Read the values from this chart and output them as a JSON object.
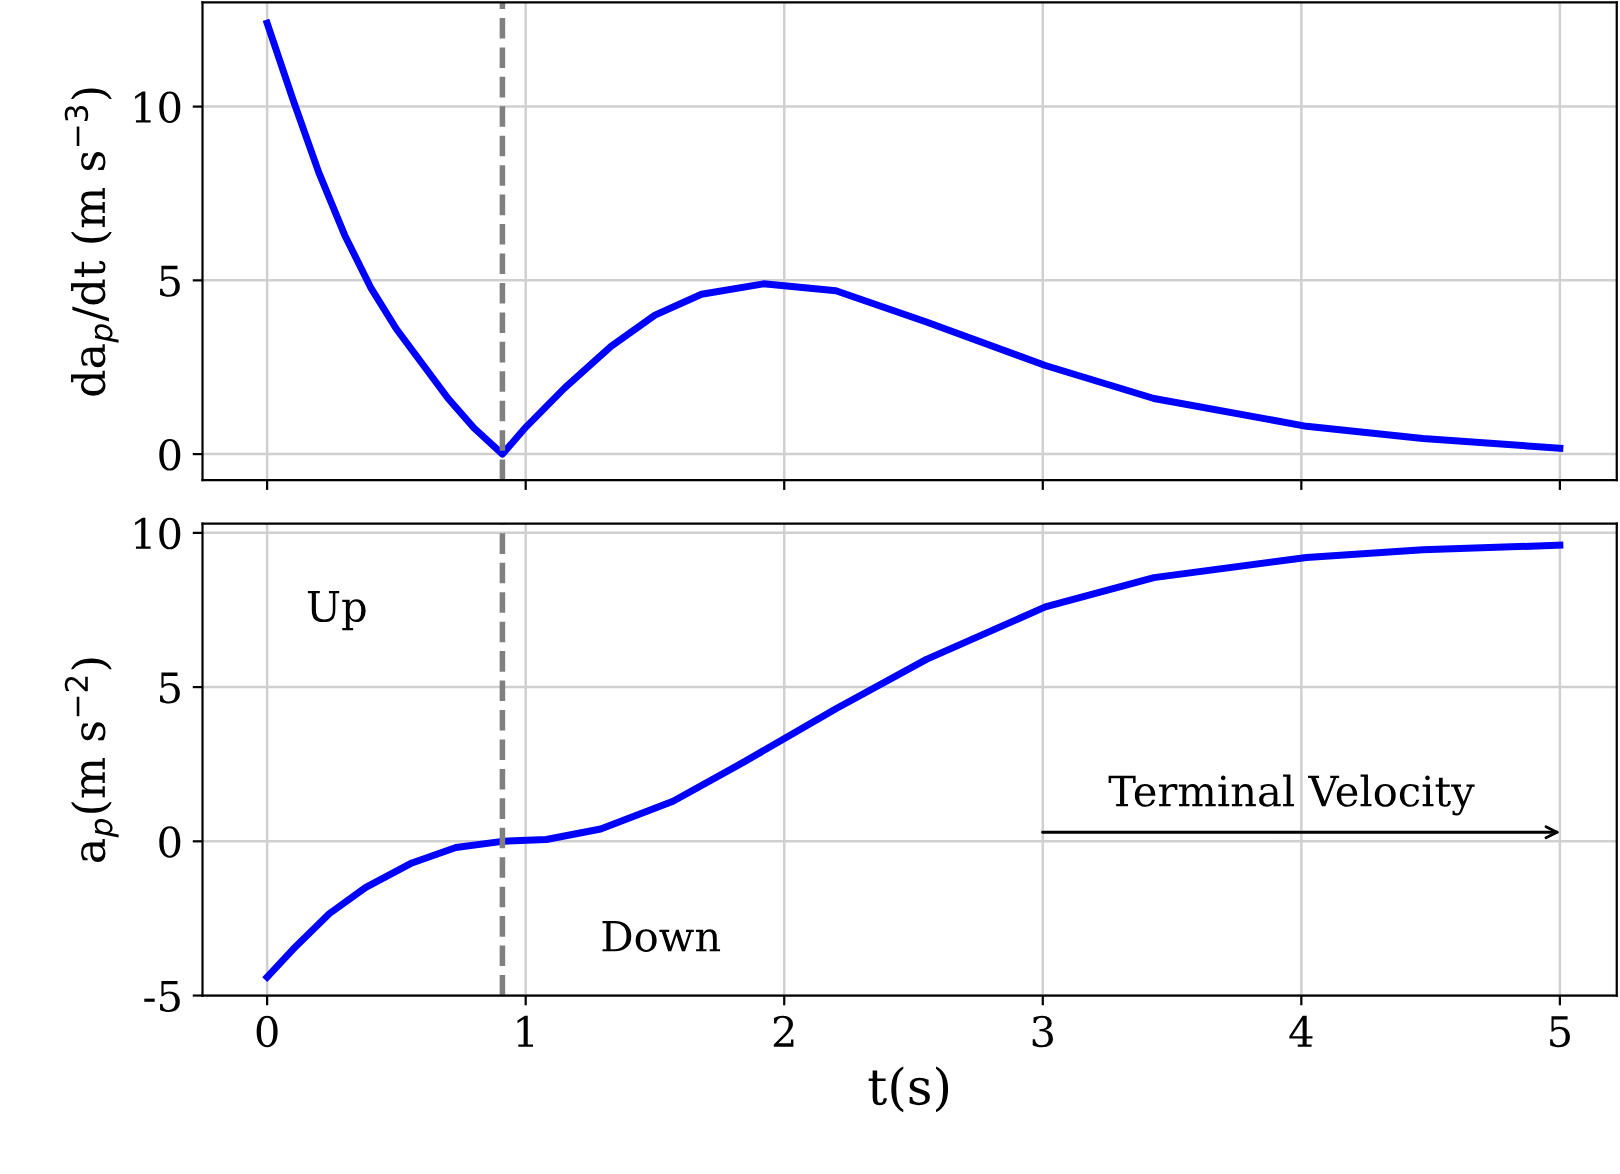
{
  "chart_data": [
    {
      "type": "line",
      "ylabel": "da$_{p}$/dt (m s$^{−3}$)",
      "x": [
        0,
        0.1,
        0.2,
        0.3,
        0.4,
        0.5,
        0.6,
        0.7,
        0.8,
        0.91,
        1.0,
        1.15,
        1.33,
        1.5,
        1.68,
        1.92,
        2.2,
        2.55,
        3.01,
        3.43,
        4.02,
        4.47,
        5.0
      ],
      "series": [
        {
          "color": "#0000ff",
          "values": [
            12.4,
            10.2,
            8.1,
            6.3,
            4.8,
            3.6,
            2.6,
            1.6,
            0.75,
            0,
            0.77,
            1.9,
            3.1,
            4.0,
            4.6,
            4.9,
            4.7,
            3.8,
            2.55,
            1.6,
            0.8,
            0.45,
            0.17
          ]
        }
      ],
      "xlim": [
        -0.25,
        5.22
      ],
      "xticks": [
        0,
        1,
        2,
        3,
        4,
        5
      ],
      "ylim": [
        -0.75,
        13.0
      ],
      "yticks": [
        0,
        5,
        10
      ],
      "ref_lines": [
        {
          "axis": "x",
          "value": 0.91,
          "color": "#808080",
          "line_style": "dashed"
        }
      ],
      "grid": true,
      "line_style": "solid",
      "tick_labels": "y"
    },
    {
      "type": "line",
      "xlabel": "t(s)",
      "ylabel": "a$_{p}$(m s$^{−2}$)",
      "x": [
        0,
        0.1,
        0.24,
        0.38,
        0.56,
        0.73,
        0.91,
        1.08,
        1.29,
        1.57,
        1.85,
        2.2,
        2.55,
        3.01,
        3.43,
        4.02,
        4.47,
        5.0
      ],
      "series": [
        {
          "color": "#0000ff",
          "values": [
            -4.4,
            -3.5,
            -2.35,
            -1.5,
            -0.7,
            -0.2,
            0,
            0.06,
            0.4,
            1.3,
            2.6,
            4.3,
            5.9,
            7.6,
            8.55,
            9.2,
            9.45,
            9.6
          ]
        }
      ],
      "xlim": [
        -0.25,
        5.22
      ],
      "xticks": [
        0,
        1,
        2,
        3,
        4,
        5
      ],
      "ylim": [
        -5.0,
        10.3
      ],
      "yticks": [
        {
          "value": -5,
          "label": "-5"
        },
        0,
        5,
        10
      ],
      "ref_lines": [
        {
          "axis": "x",
          "value": 0.91,
          "color": "#808080",
          "line_style": "dashed"
        }
      ],
      "annotations": [
        "Up",
        "Down",
        "Terminal Velocity"
      ],
      "grid": true,
      "line_style": "solid"
    }
  ]
}
